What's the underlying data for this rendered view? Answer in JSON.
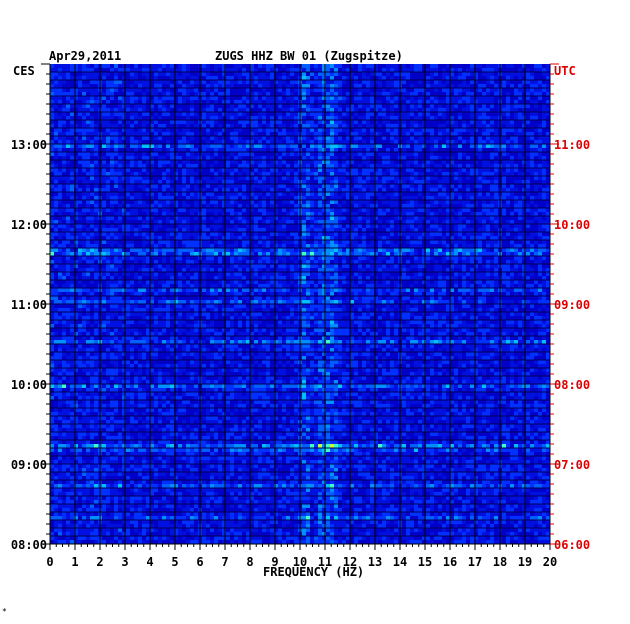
{
  "chart_data": {
    "type": "heatmap",
    "title_left": "Apr29,2011",
    "title_center": "ZUGS HHZ BW 01 (Zugspitze)",
    "left_axis_label": "CES",
    "right_axis_label": "UTC",
    "xlabel": "FREQUENCY (HZ)",
    "xlim": [
      0,
      20
    ],
    "x_ticks": [
      "0",
      "1",
      "2",
      "3",
      "4",
      "5",
      "6",
      "7",
      "8",
      "9",
      "10",
      "11",
      "12",
      "13",
      "14",
      "15",
      "16",
      "17",
      "18",
      "19",
      "20"
    ],
    "left_ticks": [
      "08:00",
      "09:00",
      "10:00",
      "11:00",
      "12:00",
      "13:00"
    ],
    "right_ticks": [
      "06:00",
      "07:00",
      "08:00",
      "09:00",
      "10:00",
      "11:00"
    ],
    "time_range_hours": [
      8.0,
      14.0
    ],
    "colors": {
      "background": "#0000c8",
      "label": "#000000",
      "utc_label": "#dd0000"
    },
    "hot_bands_hz": [
      10.2,
      10.9,
      11.3
    ],
    "footnote": "*"
  }
}
